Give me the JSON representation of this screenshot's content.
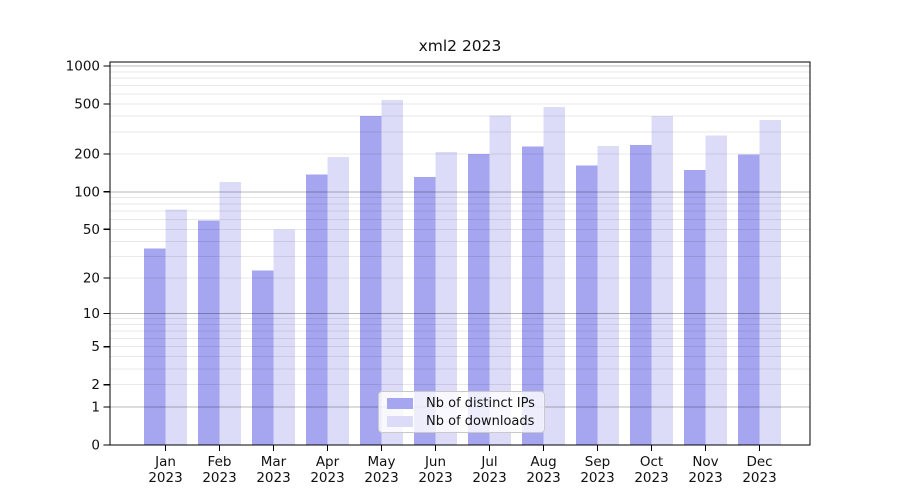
{
  "title": "xml2 2023",
  "chart_data": {
    "type": "bar",
    "title": "xml2 2023",
    "categories": [
      "Jan",
      "Feb",
      "Mar",
      "Apr",
      "May",
      "Jun",
      "Jul",
      "Aug",
      "Sep",
      "Oct",
      "Nov",
      "Dec"
    ],
    "year_label": "2023",
    "series": [
      {
        "name": "Nb of distinct IPs",
        "color": "#a5a5f0",
        "values": [
          35,
          59,
          23,
          138,
          400,
          131,
          200,
          230,
          162,
          236,
          150,
          199
        ]
      },
      {
        "name": "Nb of downloads",
        "color": "#dcdcf9",
        "values": [
          72,
          120,
          50,
          190,
          540,
          207,
          406,
          473,
          232,
          400,
          280,
          372
        ]
      }
    ],
    "y_ticks": [
      0,
      1,
      2,
      5,
      10,
      20,
      50,
      100,
      200,
      500,
      1000
    ],
    "ylim": [
      0,
      1000
    ],
    "yscale": "log10(1+x)",
    "grid": "horizontal major at powers of 10, minor log subdivisions, drawn over bars",
    "legend_position": "bottom-center-inside",
    "xlabel": "",
    "ylabel": ""
  }
}
